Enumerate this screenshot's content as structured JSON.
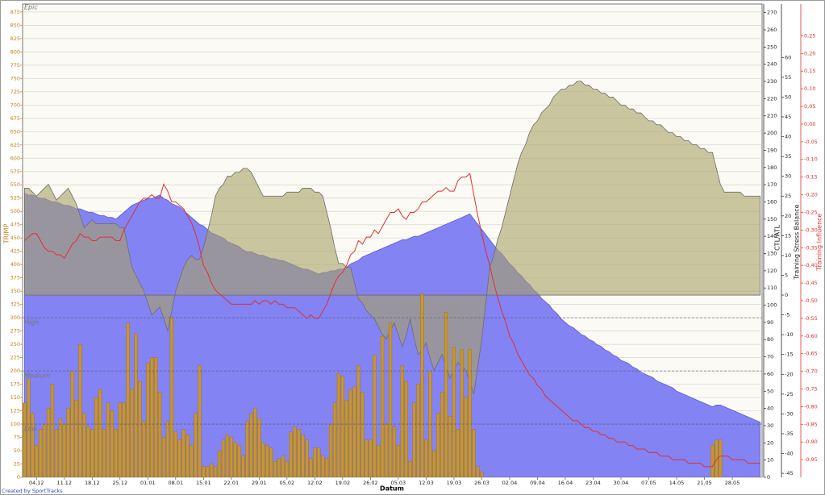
{
  "chart_data": {
    "type": "combo",
    "xlabel": "Datum",
    "credit": "Created by SportTracks",
    "ylabel": "TRIMP",
    "y2label": "CTL/ATL",
    "y3label": "Training Stress Balance",
    "y4label": "Training Influence",
    "ylim": [
      0,
      890
    ],
    "yticks": [
      0,
      25,
      50,
      75,
      100,
      125,
      150,
      175,
      200,
      225,
      250,
      275,
      300,
      325,
      350,
      375,
      400,
      425,
      450,
      475,
      500,
      525,
      550,
      575,
      600,
      625,
      650,
      675,
      700,
      725,
      750,
      775,
      800,
      825,
      850,
      875
    ],
    "y2lim": [
      0,
      275
    ],
    "y2ticks": [
      0,
      10,
      20,
      30,
      40,
      50,
      60,
      70,
      80,
      90,
      100,
      110,
      120,
      130,
      140,
      150,
      160,
      170,
      180,
      190,
      200,
      210,
      220,
      230,
      240,
      250,
      260,
      270
    ],
    "y3lim": [
      -46,
      73.5
    ],
    "y3ticks": [
      -45,
      -40,
      -35,
      -30,
      -25,
      -20,
      -15,
      -10,
      -5,
      0,
      5,
      10,
      15,
      20,
      25,
      30,
      35,
      40,
      45,
      50,
      55,
      60
    ],
    "y4lim": [
      -1.0,
      0.34
    ],
    "y4ticks": [
      {
        "value": 0.25,
        "label": "0,25"
      },
      {
        "value": 0.2,
        "label": "0,20"
      },
      {
        "value": 0.15,
        "label": "0,15"
      },
      {
        "value": 0.1,
        "label": "0,10"
      },
      {
        "value": 0.05,
        "label": "0,05"
      },
      {
        "value": 0,
        "label": "0,00"
      },
      {
        "value": -0.05,
        "label": "-0,05"
      },
      {
        "value": -0.1,
        "label": "-0,10"
      },
      {
        "value": -0.15,
        "label": "-0,15"
      },
      {
        "value": -0.2,
        "label": "-0,20"
      },
      {
        "value": -0.25,
        "label": "-0,25"
      },
      {
        "value": -0.3,
        "label": "-0,30"
      },
      {
        "value": -0.35,
        "label": "-0,35"
      },
      {
        "value": -0.4,
        "label": "-0,40"
      },
      {
        "value": -0.45,
        "label": "-0,45"
      },
      {
        "value": -0.5,
        "label": "-0,50"
      },
      {
        "value": -0.55,
        "label": "-0,55"
      },
      {
        "value": -0.6,
        "label": "-0,60"
      },
      {
        "value": -0.65,
        "label": "-0,65"
      },
      {
        "value": -0.7,
        "label": "-0,70"
      },
      {
        "value": -0.75,
        "label": "-0,75"
      },
      {
        "value": -0.8,
        "label": "-0,80"
      },
      {
        "value": -0.85,
        "label": "-0,85"
      },
      {
        "value": -0.9,
        "label": "-0,90"
      },
      {
        "value": -0.95,
        "label": "-0,95"
      }
    ],
    "grid": true,
    "zones": [
      {
        "label": "Low",
        "value": 100
      },
      {
        "label": "Medium",
        "value": 200
      },
      {
        "label": "High",
        "value": 300
      },
      {
        "label": "Epic"
      }
    ],
    "categories": [
      null,
      null,
      null,
      "04.12",
      null,
      null,
      null,
      null,
      null,
      null,
      "11.12",
      null,
      null,
      null,
      null,
      null,
      null,
      "18.12",
      null,
      null,
      null,
      null,
      null,
      null,
      "25.12",
      null,
      null,
      null,
      null,
      null,
      null,
      "01.01",
      null,
      null,
      null,
      null,
      null,
      null,
      "08.01",
      null,
      null,
      null,
      null,
      null,
      null,
      "15.01",
      null,
      null,
      null,
      null,
      null,
      null,
      "22.01",
      null,
      null,
      null,
      null,
      null,
      null,
      "29.01",
      null,
      null,
      null,
      null,
      null,
      null,
      "05.02",
      null,
      null,
      null,
      null,
      null,
      null,
      "12.02",
      null,
      null,
      null,
      null,
      null,
      null,
      "19.02",
      null,
      null,
      null,
      null,
      null,
      null,
      "26.02",
      null,
      null,
      null,
      null,
      null,
      null,
      "05.03",
      null,
      null,
      null,
      null,
      null,
      null,
      "12.03",
      null,
      null,
      null,
      null,
      null,
      null,
      "19.03",
      null,
      null,
      null,
      null,
      null,
      null,
      "26.03",
      null,
      null,
      null,
      null,
      null,
      null,
      "02.04",
      null,
      null,
      null,
      null,
      null,
      null,
      "09.04",
      null,
      null,
      null,
      null,
      null,
      null,
      "16.04",
      null,
      null,
      null,
      null,
      null,
      null,
      "23.04",
      null,
      null,
      null,
      null,
      null,
      null,
      "30.04",
      null,
      null,
      null,
      null,
      null,
      null,
      "07.05",
      null,
      null,
      null,
      null,
      null,
      null,
      "14.05",
      null,
      null,
      null,
      null,
      null,
      null,
      "21.05",
      null,
      null,
      null,
      null,
      null,
      null,
      "28.05",
      null,
      null,
      null,
      null,
      null,
      null,
      null
    ],
    "series": [
      {
        "type": "area",
        "axis": "y2",
        "color": "#7c7cf2",
        "values": [
          165,
          164,
          164,
          163,
          162,
          162,
          161,
          160,
          160,
          159,
          158,
          158,
          157,
          156,
          156,
          155,
          154,
          154,
          153,
          152,
          152,
          151,
          151,
          150,
          152,
          154,
          156,
          158,
          159,
          160,
          161,
          162,
          162,
          163,
          164,
          162,
          161,
          159,
          158,
          157,
          155,
          153,
          151,
          149,
          147,
          146,
          144,
          142,
          141,
          140,
          139,
          137,
          136,
          135,
          134,
          132,
          131,
          131,
          130,
          129,
          129,
          128,
          127,
          127,
          126,
          126,
          125,
          124,
          123,
          122,
          121,
          121,
          120,
          119,
          118,
          119,
          119,
          120,
          120,
          121,
          121,
          122,
          124,
          125,
          126,
          128,
          129,
          130,
          131,
          132,
          133,
          134,
          135,
          136,
          137,
          138,
          138,
          139,
          140,
          140,
          141,
          142,
          143,
          144,
          145,
          146,
          147,
          148,
          149,
          150,
          151,
          152,
          153,
          150,
          147,
          144,
          141,
          138,
          135,
          132,
          130,
          127,
          124,
          122,
          119,
          117,
          114,
          112,
          109,
          107,
          104,
          102,
          100,
          97,
          95,
          92,
          90,
          88,
          87,
          85,
          83,
          82,
          80,
          79,
          77,
          76,
          74,
          73,
          71,
          70,
          68,
          67,
          66,
          64,
          63,
          61,
          60,
          59,
          58,
          56,
          55,
          54,
          53,
          52,
          50,
          49,
          48,
          47,
          46,
          45,
          44,
          43,
          42,
          41,
          42,
          42,
          41,
          40,
          39,
          38,
          37,
          36,
          35,
          34,
          33,
          32
        ]
      },
      {
        "type": "area",
        "axis": "y3",
        "color": "#a8a266",
        "values": [
          27,
          27,
          26,
          25,
          26,
          27,
          28,
          26,
          24,
          25,
          26,
          27,
          25,
          23,
          20,
          17,
          18,
          19,
          18,
          18,
          18,
          18,
          18,
          18,
          17,
          17,
          12,
          7,
          5,
          3,
          1,
          -2,
          -5,
          -4,
          -3,
          -6,
          -9,
          -4,
          1,
          4,
          7,
          9,
          10,
          9,
          9,
          12,
          16,
          20,
          25,
          27,
          28,
          30,
          30,
          31,
          31,
          32,
          32,
          31,
          29,
          27,
          25,
          25,
          25,
          25,
          25,
          25,
          26,
          26,
          26,
          26,
          27,
          27,
          27,
          26,
          26,
          25,
          21,
          17,
          12,
          8,
          8,
          7,
          7,
          3,
          -1,
          -2,
          -4,
          -5,
          -6,
          -8,
          -10,
          -11,
          -9,
          -7,
          -10,
          -13,
          -10,
          -6,
          -11,
          -15,
          -14,
          -12,
          -16,
          -19,
          -17,
          -15,
          -18,
          -21,
          -19,
          -17,
          -18,
          -19,
          -22,
          -25,
          -18,
          -11,
          -2,
          7,
          10,
          14,
          17,
          21,
          25,
          29,
          33,
          36,
          38,
          41,
          43,
          44,
          46,
          47,
          48,
          50,
          51,
          52,
          52,
          53,
          53,
          54,
          54,
          53,
          53,
          52,
          52,
          51,
          51,
          50,
          50,
          49,
          48,
          48,
          47,
          47,
          46,
          46,
          45,
          44,
          44,
          43,
          43,
          42,
          41,
          41,
          40,
          40,
          39,
          39,
          38,
          38,
          37,
          37,
          36,
          36,
          32,
          28,
          26,
          26,
          26,
          26,
          26,
          25,
          25,
          25,
          25,
          25
        ]
      },
      {
        "type": "bar",
        "axis": "y",
        "color": "#c8962a",
        "values": [
          140,
          185,
          120,
          60,
          90,
          100,
          130,
          175,
          90,
          110,
          100,
          130,
          200,
          145,
          250,
          120,
          95,
          90,
          150,
          165,
          90,
          140,
          125,
          90,
          140,
          140,
          290,
          165,
          270,
          180,
          105,
          215,
          225,
          225,
          160,
          75,
          105,
          300,
          85,
          70,
          90,
          80,
          60,
          120,
          210,
          20,
          20,
          25,
          20,
          50,
          70,
          80,
          75,
          65,
          60,
          40,
          105,
          120,
          130,
          110,
          65,
          60,
          55,
          30,
          35,
          40,
          30,
          85,
          95,
          90,
          80,
          70,
          35,
          55,
          55,
          40,
          35,
          100,
          140,
          195,
          190,
          145,
          165,
          170,
          210,
          160,
          70,
          70,
          230,
          60,
          265,
          100,
          290,
          95,
          60,
          210,
          180,
          30,
          140,
          175,
          345,
          70,
          200,
          50,
          120,
          160,
          310,
          115,
          245,
          90,
          240,
          150,
          240,
          90,
          20,
          10,
          0,
          0,
          0,
          0,
          0,
          0,
          0,
          0,
          0,
          0,
          0,
          0,
          0,
          0,
          0,
          0,
          0,
          0,
          0,
          0,
          0,
          0,
          0,
          0,
          0,
          0,
          0,
          0,
          0,
          0,
          0,
          0,
          0,
          0,
          0,
          0,
          0,
          0,
          0,
          0,
          0,
          0,
          0,
          0,
          0,
          0,
          0,
          0,
          0,
          0,
          0,
          0,
          0,
          0,
          0,
          0,
          0,
          60,
          70,
          70,
          0,
          0,
          0,
          0,
          0,
          0,
          0,
          0,
          0,
          0
        ]
      },
      {
        "type": "line",
        "axis": "y4",
        "color": "#e03030",
        "values": [
          -0.33,
          -0.32,
          -0.31,
          -0.31,
          -0.33,
          -0.35,
          -0.36,
          -0.36,
          -0.37,
          -0.37,
          -0.38,
          -0.36,
          -0.34,
          -0.33,
          -0.31,
          -0.32,
          -0.32,
          -0.33,
          -0.33,
          -0.32,
          -0.32,
          -0.32,
          -0.32,
          -0.33,
          -0.33,
          -0.3,
          -0.28,
          -0.26,
          -0.24,
          -0.22,
          -0.21,
          -0.21,
          -0.2,
          -0.21,
          -0.21,
          -0.17,
          -0.19,
          -0.22,
          -0.22,
          -0.23,
          -0.24,
          -0.26,
          -0.28,
          -0.31,
          -0.35,
          -0.4,
          -0.42,
          -0.45,
          -0.47,
          -0.48,
          -0.49,
          -0.5,
          -0.51,
          -0.51,
          -0.51,
          -0.51,
          -0.51,
          -0.51,
          -0.5,
          -0.51,
          -0.5,
          -0.5,
          -0.51,
          -0.5,
          -0.51,
          -0.51,
          -0.52,
          -0.52,
          -0.52,
          -0.53,
          -0.54,
          -0.55,
          -0.54,
          -0.55,
          -0.55,
          -0.53,
          -0.51,
          -0.48,
          -0.45,
          -0.43,
          -0.42,
          -0.4,
          -0.37,
          -0.36,
          -0.33,
          -0.34,
          -0.32,
          -0.32,
          -0.3,
          -0.31,
          -0.29,
          -0.27,
          -0.25,
          -0.25,
          -0.24,
          -0.26,
          -0.27,
          -0.25,
          -0.25,
          -0.24,
          -0.22,
          -0.22,
          -0.21,
          -0.2,
          -0.19,
          -0.19,
          -0.18,
          -0.19,
          -0.19,
          -0.16,
          -0.15,
          -0.15,
          -0.14,
          -0.2,
          -0.26,
          -0.31,
          -0.36,
          -0.4,
          -0.45,
          -0.49,
          -0.53,
          -0.56,
          -0.6,
          -0.62,
          -0.65,
          -0.67,
          -0.69,
          -0.71,
          -0.72,
          -0.74,
          -0.75,
          -0.77,
          -0.78,
          -0.79,
          -0.8,
          -0.81,
          -0.82,
          -0.83,
          -0.84,
          -0.84,
          -0.85,
          -0.86,
          -0.86,
          -0.87,
          -0.87,
          -0.88,
          -0.88,
          -0.89,
          -0.89,
          -0.9,
          -0.9,
          -0.9,
          -0.91,
          -0.91,
          -0.92,
          -0.92,
          -0.92,
          -0.93,
          -0.93,
          -0.93,
          -0.94,
          -0.94,
          -0.94,
          -0.95,
          -0.95,
          -0.95,
          -0.95,
          -0.96,
          -0.96,
          -0.96,
          -0.96,
          -0.97,
          -0.97,
          -0.97,
          -0.95,
          -0.94,
          -0.94,
          -0.94,
          -0.95,
          -0.95,
          -0.95,
          -0.95,
          -0.96,
          -0.96,
          -0.96,
          -0.96
        ]
      }
    ]
  }
}
